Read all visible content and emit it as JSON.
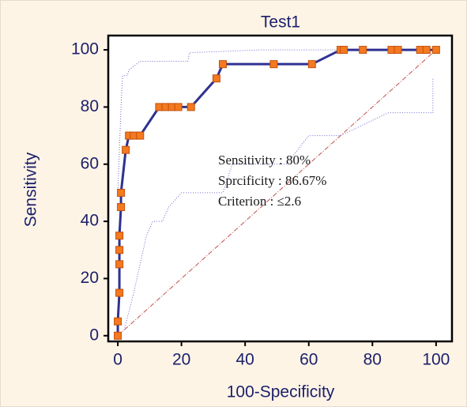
{
  "chart_data": {
    "type": "line",
    "title": "Test1",
    "x_label": "100-Specificity",
    "y_label": "Sensitivity",
    "xlim": [
      -3,
      105
    ],
    "ylim": [
      -2,
      105
    ],
    "xticks": [
      0,
      20,
      40,
      60,
      80,
      100
    ],
    "yticks": [
      0,
      20,
      40,
      60,
      80,
      100
    ],
    "series": [
      {
        "color": "#2e3192",
        "marker_color": "#f47920",
        "x": [
          0,
          0,
          0.5,
          0.5,
          0.5,
          0.5,
          1,
          1,
          2.5,
          3.5,
          5,
          7,
          13,
          15,
          17,
          19,
          23,
          31,
          33,
          49,
          61,
          70,
          71,
          77,
          86,
          88,
          95,
          97,
          100
        ],
        "values": [
          0,
          5,
          15,
          25,
          30,
          35,
          45,
          50,
          65,
          70,
          70,
          70,
          80,
          80,
          80,
          80,
          80,
          90,
          95,
          95,
          95,
          100,
          100,
          100,
          100,
          100,
          100,
          100,
          100
        ]
      }
    ],
    "bands": [
      {
        "color": "#6a6ad0",
        "x": [
          0,
          1,
          1.5,
          3,
          3.5,
          7,
          22,
          22.5,
          45,
          100
        ],
        "values": [
          50,
          80,
          91,
          91,
          93,
          96,
          96,
          99,
          100,
          100
        ]
      },
      {
        "color": "#6a6ad0",
        "x": [
          2,
          5,
          7,
          9,
          11,
          14,
          16,
          20,
          33,
          36,
          53,
          60,
          70,
          85,
          99,
          99
        ],
        "values": [
          2,
          15,
          25,
          35,
          40,
          40,
          45,
          50,
          50,
          60,
          60,
          70,
          70,
          78,
          78,
          90
        ]
      }
    ],
    "reference_line": {
      "color": "#c0504d",
      "x": [
        0,
        100
      ],
      "values": [
        0,
        100
      ]
    },
    "annotations": [
      "Sensitivity : 80%",
      "Sprcificity : 86.67%",
      "Criterion : ≤2.6"
    ]
  }
}
